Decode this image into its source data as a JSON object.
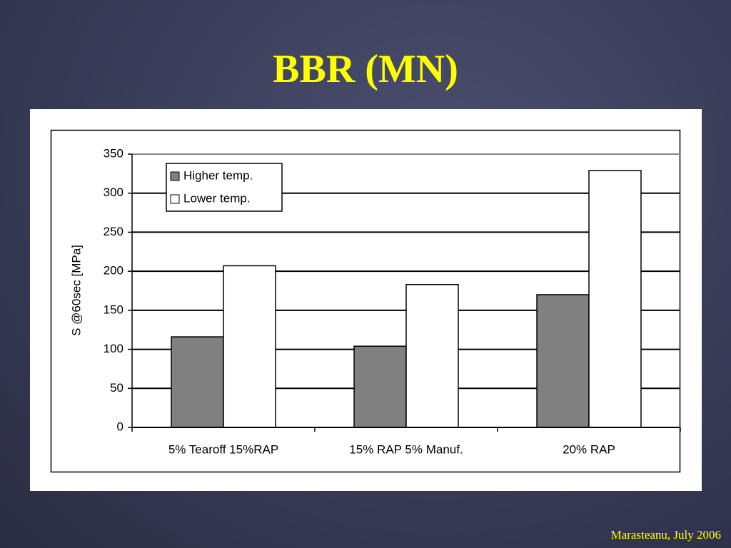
{
  "chart_data": {
    "type": "bar",
    "title": "BBR (MN)",
    "y_label": "S @60sec [MPa]",
    "categories": [
      "5% Tearoff 15%RAP",
      "15% RAP 5% Manuf.",
      "20% RAP"
    ],
    "series": [
      {
        "name": "Higher temp.",
        "color": "#808080",
        "values": [
          116,
          104,
          170
        ]
      },
      {
        "name": "Lower temp.",
        "color": "#ffffff",
        "values": [
          207,
          183,
          329
        ]
      }
    ],
    "ylim": [
      0,
      350
    ],
    "yticks": [
      0,
      50,
      100,
      150,
      200,
      250,
      300,
      350
    ],
    "grid": true,
    "legend": "top-left"
  },
  "footer": "Marasteanu, July 2006"
}
